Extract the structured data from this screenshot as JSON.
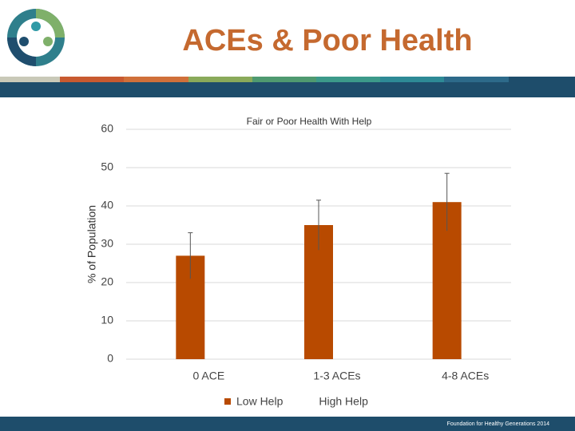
{
  "title": "ACEs & Poor Health",
  "footer": "Foundation for Healthy Generations 2014",
  "chart_data": {
    "type": "bar",
    "title": "Fair or Poor Health With Help",
    "ylabel": "% of Population",
    "categories": [
      "0 ACE",
      "1-3 ACEs",
      "4-8 ACEs"
    ],
    "series": [
      {
        "name": "Low Help",
        "color": "#b84a00",
        "values": [
          27,
          35,
          41
        ],
        "errors": [
          6,
          6.5,
          7.5
        ]
      },
      {
        "name": "High Help",
        "color": "#8a8a8a",
        "values": [
          null,
          null,
          null
        ]
      }
    ],
    "ylim": [
      0,
      60
    ],
    "yticks": [
      0,
      10,
      20,
      30,
      40,
      50,
      60
    ],
    "grid": true
  }
}
